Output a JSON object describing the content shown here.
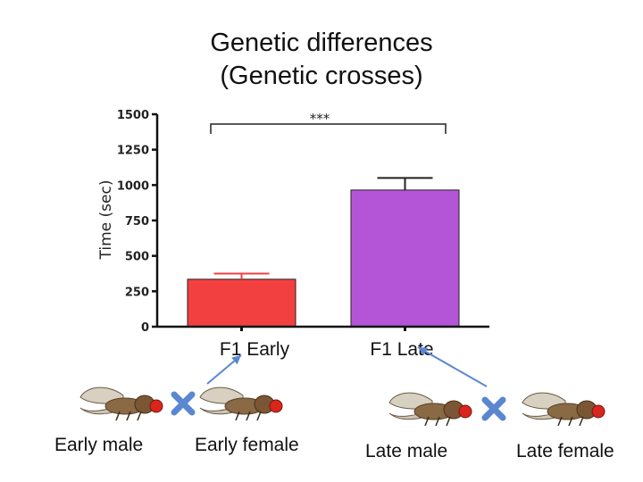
{
  "title_lines": [
    "Genetic differences",
    "(Genetic crosses)"
  ],
  "chart_data": {
    "type": "bar",
    "categories": [
      "F1 Early",
      "F1 Late"
    ],
    "values": [
      335,
      965
    ],
    "errors": [
      40,
      85
    ],
    "colors": [
      "#f24040",
      "#b455d8"
    ],
    "ylabel": "Time (sec)",
    "xlabel": "",
    "ylim": [
      0,
      1500
    ],
    "yticks": [
      0,
      250,
      500,
      750,
      1000,
      1250,
      1500
    ],
    "ytick_labels": [
      "0",
      "250",
      "500",
      "750",
      "1000",
      "1250",
      "1500"
    ],
    "significance": "***",
    "grid": false
  },
  "crosses": {
    "labels": [
      "Early male",
      "Early female",
      "Late male",
      "Late female"
    ],
    "cross_color": "#5b87d0",
    "arrow_color": "#5b87d0"
  }
}
